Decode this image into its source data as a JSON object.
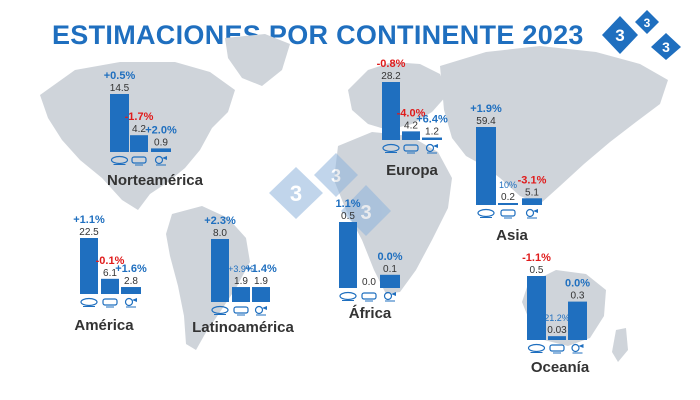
{
  "header": {
    "title": "ESTIMACIONES POR CONTINENTE 2023",
    "logo_text": "333",
    "watermark_text": "333"
  },
  "colors": {
    "bar": "#1f6fbf",
    "positive": "#1f6fbf",
    "negative": "#e01b1b",
    "map": "#cfd4da",
    "title": "#1f6fbf"
  },
  "icons": [
    "cattle-icon",
    "pig-icon",
    "poultry-icon"
  ],
  "chart_data": {
    "type": "bar",
    "title": "ESTIMACIONES POR CONTINENTE 2023",
    "category_icons": [
      "cattle-icon",
      "pig-icon",
      "poultry-icon"
    ],
    "panels": [
      {
        "name": "Norteamérica",
        "values": [
          14.5,
          4.2,
          0.9
        ],
        "value_labels": [
          "14.5",
          "4.2",
          "0.9"
        ],
        "changes": [
          "+0.5%",
          "-1.7%",
          "+2.0%"
        ]
      },
      {
        "name": "América",
        "values": [
          22.5,
          6.1,
          2.8
        ],
        "value_labels": [
          "22.5",
          "6.1",
          "2.8"
        ],
        "changes": [
          "+1.1%",
          "-0.1%",
          "+1.6%"
        ]
      },
      {
        "name": "Latinoamérica",
        "values": [
          8.0,
          1.9,
          1.9
        ],
        "value_labels": [
          "8.0",
          "1.9",
          "1.9"
        ],
        "changes": [
          "+2.3%",
          "+3.9%",
          "+1.4%"
        ]
      },
      {
        "name": "Europa",
        "values": [
          28.2,
          4.2,
          1.2
        ],
        "value_labels": [
          "28.2",
          "4.2",
          "1.2"
        ],
        "changes": [
          "-0.8%",
          "-4.0%",
          "+6.4%"
        ]
      },
      {
        "name": "África",
        "values": [
          0.5,
          0.0,
          0.1
        ],
        "value_labels": [
          "0.5",
          "0.0",
          "0.1"
        ],
        "changes": [
          "1.1%",
          "",
          "0.0%"
        ]
      },
      {
        "name": "Asia",
        "values": [
          59.4,
          0.2,
          5.1
        ],
        "value_labels": [
          "59.4",
          "0.2",
          "5.1"
        ],
        "changes": [
          "+1.9%",
          "10%",
          "-3.1%"
        ]
      },
      {
        "name": "Oceanía",
        "values": [
          0.5,
          0.03,
          0.3
        ],
        "value_labels": [
          "0.5",
          "0.03",
          "0.3"
        ],
        "changes": [
          "-1.1%",
          "21.2%",
          "0.0%"
        ]
      }
    ]
  }
}
